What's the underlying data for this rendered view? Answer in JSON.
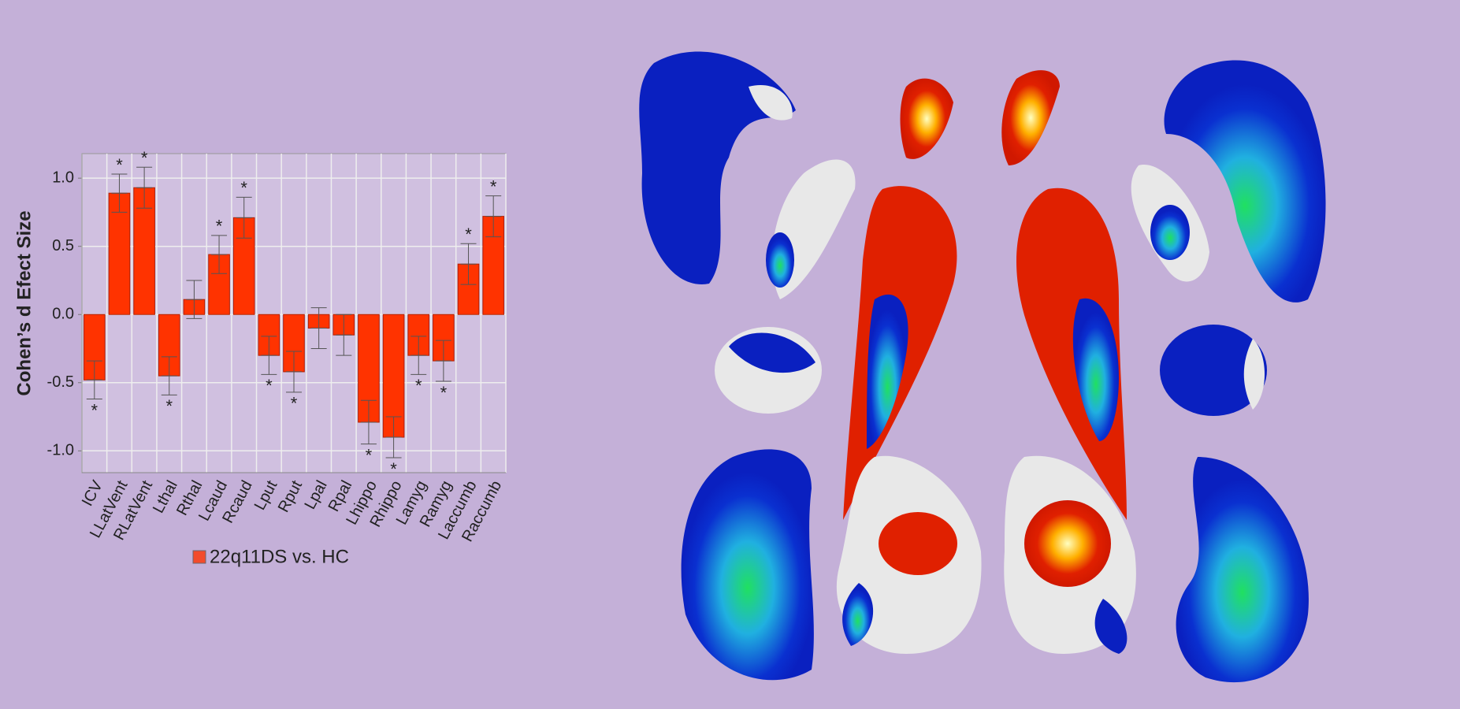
{
  "chart_data": {
    "type": "bar",
    "ylabel": "Cohen’s d Efect Size",
    "categories": [
      "ICV",
      "LLatVent",
      "RLatVent",
      "Lthal",
      "Rthal",
      "Lcaud",
      "Rcaud",
      "Lput",
      "Rput",
      "Lpal",
      "Rpal",
      "Lhippo",
      "Rhippo",
      "Lamyg",
      "Ramyg",
      "Laccumb",
      "Raccumb"
    ],
    "series": [
      {
        "name": "22q11DS vs. HC",
        "color": "#ff3300",
        "values": [
          -0.48,
          0.89,
          0.93,
          -0.45,
          0.11,
          0.44,
          0.71,
          -0.3,
          -0.42,
          -0.1,
          -0.15,
          -0.79,
          -0.9,
          -0.3,
          -0.34,
          0.37,
          0.72
        ],
        "errors": [
          0.14,
          0.14,
          0.15,
          0.14,
          0.14,
          0.14,
          0.15,
          0.14,
          0.15,
          0.15,
          0.15,
          0.16,
          0.15,
          0.14,
          0.15,
          0.15,
          0.15
        ],
        "significance": [
          "*",
          "*",
          "*",
          "*",
          null,
          "*",
          "*",
          "*",
          "*",
          null,
          null,
          "*",
          "*",
          "*",
          "*",
          "*",
          "*"
        ]
      }
    ],
    "ylim": [
      -1.16,
      1.18
    ],
    "yticks": [
      {
        "value": -1,
        "label": "-1.0"
      },
      {
        "value": -0.5,
        "label": "-0.5"
      },
      {
        "value": 0,
        "label": "0.0"
      },
      {
        "value": 0.5,
        "label": "0.5"
      },
      {
        "value": 1,
        "label": "1.0"
      }
    ],
    "grid": true
  }
}
